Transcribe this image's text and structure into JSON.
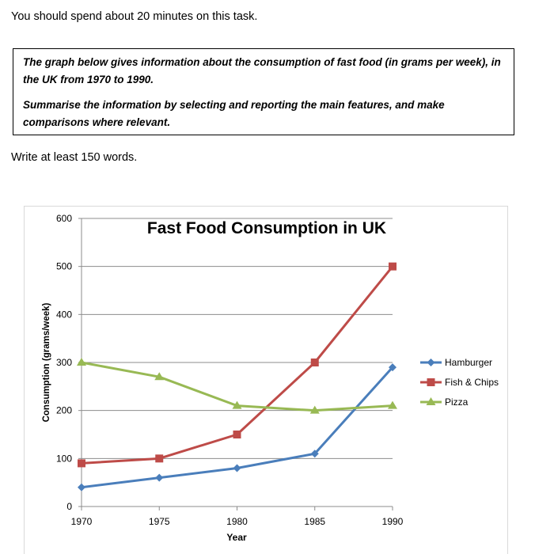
{
  "instructions": {
    "time_note": "You should spend about 20 minutes on this task.",
    "task_paragraph_1": "The graph below gives information about the consumption of fast food (in grams per week), in the UK from 1970 to 1990.",
    "task_paragraph_2": "Summarise the information by selecting and reporting the main features, and make comparisons where relevant.",
    "word_count_note": "Write at least 150 words."
  },
  "chart_data": {
    "type": "line",
    "title": "Fast Food Consumption in UK",
    "xlabel": "Year",
    "ylabel": "Consumption (grams/week)",
    "x": [
      1970,
      1975,
      1980,
      1985,
      1990
    ],
    "ylim": [
      0,
      600
    ],
    "yticks": [
      0,
      100,
      200,
      300,
      400,
      500,
      600
    ],
    "grid": true,
    "legend_position": "right",
    "series": [
      {
        "name": "Hamburger",
        "values": [
          40,
          60,
          80,
          110,
          290
        ],
        "color": "#4a7ebb",
        "marker": "diamond"
      },
      {
        "name": "Fish & Chips",
        "values": [
          90,
          100,
          150,
          300,
          500
        ],
        "color": "#be4b48",
        "marker": "square"
      },
      {
        "name": "Pizza",
        "values": [
          300,
          270,
          210,
          200,
          210
        ],
        "color": "#98b954",
        "marker": "triangle"
      }
    ]
  }
}
